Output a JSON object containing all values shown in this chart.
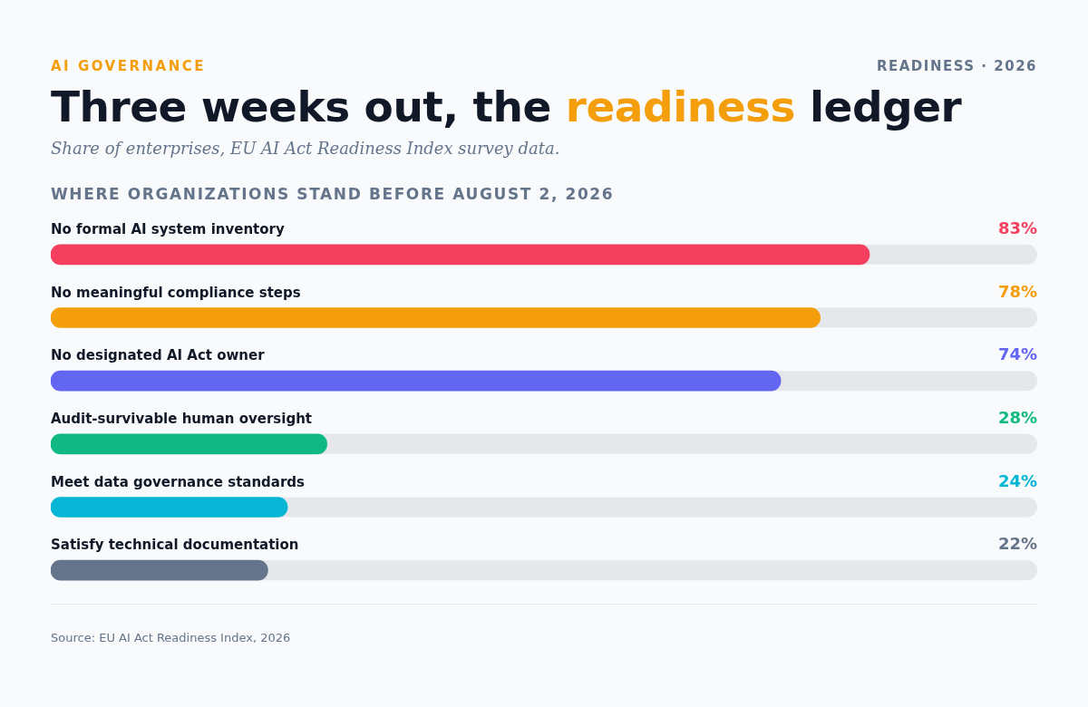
{
  "chart_data": {
    "type": "bar",
    "orientation": "horizontal",
    "title": "Three weeks out, the readiness ledger",
    "subtitle": "Share of enterprises, EU AI Act Readiness Index survey data.",
    "categories": [
      "No formal AI system inventory",
      "No meaningful compliance steps",
      "No designated AI Act owner",
      "Audit-survivable human oversight",
      "Meet data governance standards",
      "Satisfy technical documentation"
    ],
    "values": [
      83,
      78,
      74,
      28,
      24,
      22
    ],
    "value_labels": [
      "83%",
      "78%",
      "74%",
      "28%",
      "24%",
      "22%"
    ],
    "colors": [
      "#f43f5e",
      "#f59e0b",
      "#6366f1",
      "#10b981",
      "#06b6d4",
      "#64748b"
    ],
    "xlim": [
      0,
      100
    ],
    "grid": false,
    "legend": false,
    "tick_labels": false,
    "annotations": [
      "AI GOVERNANCE",
      "READINESS · 2026",
      "WHERE ORGANIZATIONS STAND BEFORE AUGUST 2, 2026",
      "Source: EU AI Act Readiness Index, 2026"
    ]
  }
}
